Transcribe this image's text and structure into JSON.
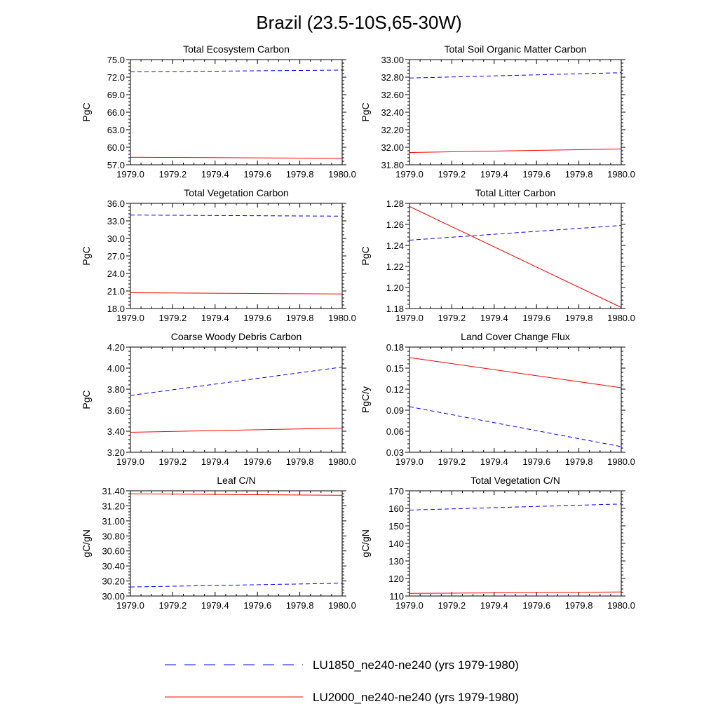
{
  "title": "Brazil (23.5-10S,65-30W)",
  "legend": [
    {
      "label": "LU1850_ne240-ne240 (yrs 1979-1980)",
      "color": "#0000ff",
      "dash": "dashed"
    },
    {
      "label": "LU2000_ne240-ne240 (yrs 1979-1980)",
      "color": "#ff0000",
      "dash": "solid"
    }
  ],
  "chart_data": [
    {
      "type": "line",
      "title": "Total Ecosystem Carbon",
      "ylabel": "PgC",
      "x": [
        1979.0,
        1980.0
      ],
      "xlim": [
        1979.0,
        1980.0
      ],
      "xticks": [
        "1979.0",
        "1979.2",
        "1979.4",
        "1979.6",
        "1979.8",
        "1980.0"
      ],
      "ylim": [
        57.0,
        75.0
      ],
      "yticks": [
        "57.0",
        "60.0",
        "63.0",
        "66.0",
        "69.0",
        "72.0",
        "75.0"
      ],
      "series": [
        {
          "values": [
            72.9,
            73.2
          ],
          "color": "#0000ff",
          "dash": "dashed"
        },
        {
          "values": [
            58.3,
            58.1
          ],
          "color": "#ff0000",
          "dash": "solid"
        }
      ]
    },
    {
      "type": "line",
      "title": "Total Soil Organic Matter Carbon",
      "ylabel": "PgC",
      "x": [
        1979.0,
        1980.0
      ],
      "xlim": [
        1979.0,
        1980.0
      ],
      "xticks": [
        "1979.0",
        "1979.2",
        "1979.4",
        "1979.6",
        "1979.8",
        "1980.0"
      ],
      "ylim": [
        31.8,
        33.0
      ],
      "yticks": [
        "31.80",
        "32.00",
        "32.20",
        "32.40",
        "32.60",
        "32.80",
        "33.00"
      ],
      "series": [
        {
          "values": [
            32.79,
            32.85
          ],
          "color": "#0000ff",
          "dash": "dashed"
        },
        {
          "values": [
            31.94,
            31.98
          ],
          "color": "#ff0000",
          "dash": "solid"
        }
      ]
    },
    {
      "type": "line",
      "title": "Total Vegetation Carbon",
      "ylabel": "PgC",
      "x": [
        1979.0,
        1980.0
      ],
      "xlim": [
        1979.0,
        1980.0
      ],
      "xticks": [
        "1979.0",
        "1979.2",
        "1979.4",
        "1979.6",
        "1979.8",
        "1980.0"
      ],
      "ylim": [
        18.0,
        36.0
      ],
      "yticks": [
        "18.0",
        "21.0",
        "24.0",
        "27.0",
        "30.0",
        "33.0",
        "36.0"
      ],
      "series": [
        {
          "values": [
            34.0,
            33.8
          ],
          "color": "#0000ff",
          "dash": "dashed"
        },
        {
          "values": [
            20.7,
            20.5
          ],
          "color": "#ff0000",
          "dash": "solid"
        }
      ]
    },
    {
      "type": "line",
      "title": "Total Litter Carbon",
      "ylabel": "PgC",
      "x": [
        1979.0,
        1980.0
      ],
      "xlim": [
        1979.0,
        1980.0
      ],
      "xticks": [
        "1979.0",
        "1979.2",
        "1979.4",
        "1979.6",
        "1979.8",
        "1980.0"
      ],
      "ylim": [
        1.18,
        1.28
      ],
      "yticks": [
        "1.18",
        "1.20",
        "1.22",
        "1.24",
        "1.26",
        "1.28"
      ],
      "series": [
        {
          "values": [
            1.245,
            1.259
          ],
          "color": "#0000ff",
          "dash": "dashed"
        },
        {
          "values": [
            1.277,
            1.181
          ],
          "color": "#ff0000",
          "dash": "solid"
        }
      ]
    },
    {
      "type": "line",
      "title": "Coarse Woody Debris Carbon",
      "ylabel": "PgC",
      "x": [
        1979.0,
        1980.0
      ],
      "xlim": [
        1979.0,
        1980.0
      ],
      "xticks": [
        "1979.0",
        "1979.2",
        "1979.4",
        "1979.6",
        "1979.8",
        "1980.0"
      ],
      "ylim": [
        3.2,
        4.2
      ],
      "yticks": [
        "3.20",
        "3.40",
        "3.60",
        "3.80",
        "4.00",
        "4.20"
      ],
      "series": [
        {
          "values": [
            3.74,
            4.01
          ],
          "color": "#0000ff",
          "dash": "dashed"
        },
        {
          "values": [
            3.39,
            3.43
          ],
          "color": "#ff0000",
          "dash": "solid"
        }
      ]
    },
    {
      "type": "line",
      "title": "Land Cover Change Flux",
      "ylabel": "PgC/y",
      "x": [
        1979.0,
        1980.0
      ],
      "xlim": [
        1979.0,
        1980.0
      ],
      "xticks": [
        "1979.0",
        "1979.2",
        "1979.4",
        "1979.6",
        "1979.8",
        "1980.0"
      ],
      "ylim": [
        0.03,
        0.18
      ],
      "yticks": [
        "0.03",
        "0.06",
        "0.09",
        "0.12",
        "0.15",
        "0.18"
      ],
      "series": [
        {
          "values": [
            0.095,
            0.038
          ],
          "color": "#0000ff",
          "dash": "dashed"
        },
        {
          "values": [
            0.165,
            0.122
          ],
          "color": "#ff0000",
          "dash": "solid"
        }
      ]
    },
    {
      "type": "line",
      "title": "Leaf C/N",
      "ylabel": "gC/gN",
      "x": [
        1979.0,
        1980.0
      ],
      "xlim": [
        1979.0,
        1980.0
      ],
      "xticks": [
        "1979.0",
        "1979.2",
        "1979.4",
        "1979.6",
        "1979.8",
        "1980.0"
      ],
      "ylim": [
        30.0,
        31.4
      ],
      "yticks": [
        "30.00",
        "30.20",
        "30.40",
        "30.60",
        "30.80",
        "31.00",
        "31.20",
        "31.40"
      ],
      "series": [
        {
          "values": [
            30.12,
            30.17
          ],
          "color": "#0000ff",
          "dash": "dashed"
        },
        {
          "values": [
            31.36,
            31.34
          ],
          "color": "#ff0000",
          "dash": "solid"
        }
      ]
    },
    {
      "type": "line",
      "title": "Total Vegetation C/N",
      "ylabel": "gC/gN",
      "x": [
        1979.0,
        1980.0
      ],
      "xlim": [
        1979.0,
        1980.0
      ],
      "xticks": [
        "1979.0",
        "1979.2",
        "1979.4",
        "1979.6",
        "1979.8",
        "1980.0"
      ],
      "ylim": [
        110,
        170
      ],
      "yticks": [
        "110",
        "120",
        "130",
        "140",
        "150",
        "160",
        "170"
      ],
      "series": [
        {
          "values": [
            159.0,
            162.5
          ],
          "color": "#0000ff",
          "dash": "dashed"
        },
        {
          "values": [
            111.5,
            112.3
          ],
          "color": "#ff0000",
          "dash": "solid"
        }
      ]
    }
  ]
}
